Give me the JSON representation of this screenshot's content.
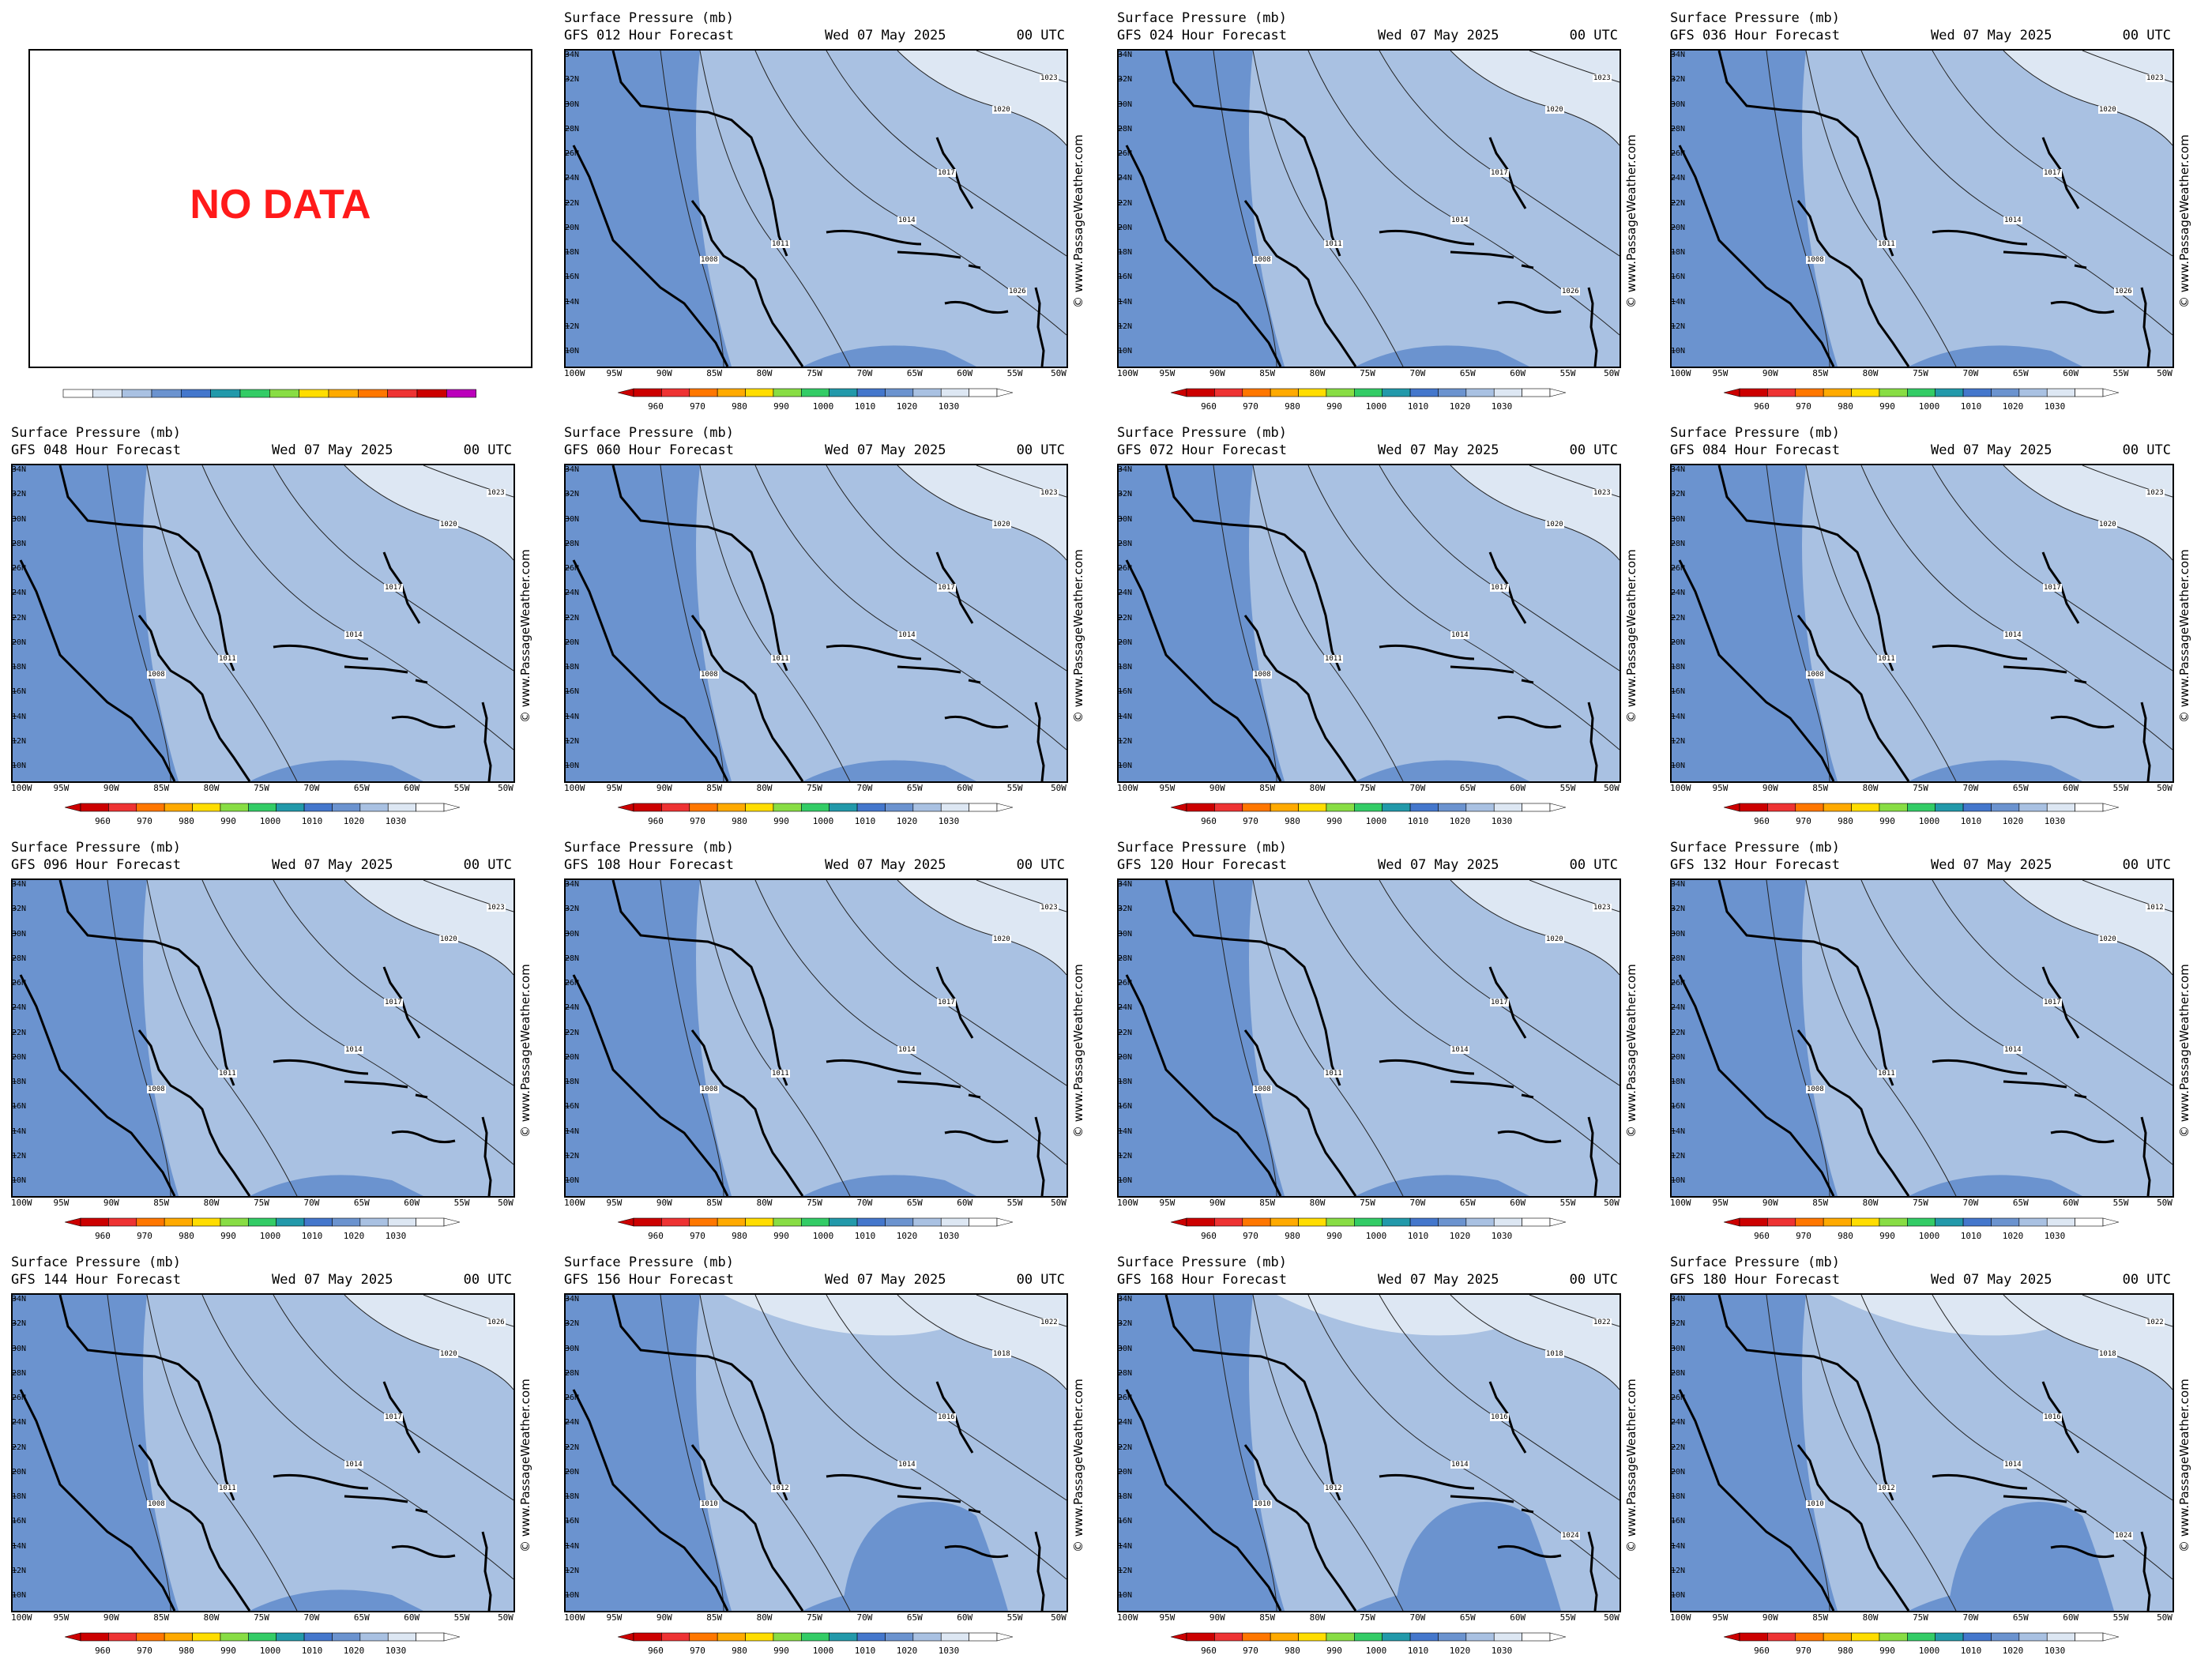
{
  "nodata_panel": {
    "text": "NO DATA"
  },
  "common": {
    "title": "Surface Pressure (mb)",
    "date": "Wed 07 May 2025",
    "utc": "00 UTC",
    "credit": "© www.PassageWeather.com",
    "lat_labels": [
      "34N",
      "32N",
      "30N",
      "28N",
      "26N",
      "24N",
      "22N",
      "20N",
      "18N",
      "16N",
      "14N",
      "12N",
      "10N"
    ],
    "lon_labels": [
      "100W",
      "95W",
      "90W",
      "85W",
      "80W",
      "75W",
      "70W",
      "65W",
      "60W",
      "55W",
      "50W"
    ],
    "colorbar_ticks": [
      "960",
      "970",
      "980",
      "990",
      "1000",
      "1010",
      "1020",
      "1030"
    ],
    "colorbar_colors": [
      "#cc0000",
      "#ee3333",
      "#ff7700",
      "#ffaa00",
      "#ffdd00",
      "#88dd44",
      "#33cc66",
      "#2299aa",
      "#4477cc",
      "#6b93cf",
      "#a9c1e2",
      "#dde7f3",
      "#ffffff"
    ],
    "nodata_colorbar_colors": [
      "#ffffff",
      "#dde7f3",
      "#a9c1e2",
      "#6b93cf",
      "#4477cc",
      "#2299aa",
      "#33cc66",
      "#88dd44",
      "#ffdd00",
      "#ffaa00",
      "#ff7700",
      "#ee3333",
      "#cc0000",
      "#bb00bb"
    ],
    "land_color": "#000000",
    "low_fill": "#6b93cf",
    "mid_fill": "#a9c1e2",
    "high_fill": "#dde7f3"
  },
  "panels": [
    {
      "model": "GFS 012 Hour Forecast",
      "isobars": [
        "1017",
        "1014",
        "1011",
        "1008",
        "1020",
        "1023",
        "1026"
      ]
    },
    {
      "model": "GFS 024 Hour Forecast",
      "isobars": [
        "1017",
        "1014",
        "1011",
        "1008",
        "1020",
        "1023",
        "1026"
      ]
    },
    {
      "model": "GFS 036 Hour Forecast",
      "isobars": [
        "1017",
        "1014",
        "1011",
        "1008",
        "1020",
        "1023",
        "1026"
      ]
    },
    {
      "model": "GFS 048 Hour Forecast",
      "isobars": [
        "1017",
        "1014",
        "1011",
        "1008",
        "1020",
        "1023"
      ]
    },
    {
      "model": "GFS 060 Hour Forecast",
      "isobars": [
        "1017",
        "1014",
        "1011",
        "1008",
        "1020",
        "1023"
      ]
    },
    {
      "model": "GFS 072 Hour Forecast",
      "isobars": [
        "1017",
        "1014",
        "1011",
        "1008",
        "1020",
        "1023"
      ]
    },
    {
      "model": "GFS 084 Hour Forecast",
      "isobars": [
        "1017",
        "1014",
        "1011",
        "1008",
        "1020",
        "1023"
      ]
    },
    {
      "model": "GFS 096 Hour Forecast",
      "isobars": [
        "1017",
        "1014",
        "1011",
        "1008",
        "1020",
        "1023"
      ]
    },
    {
      "model": "GFS 108 Hour Forecast",
      "isobars": [
        "1017",
        "1014",
        "1011",
        "1008",
        "1020",
        "1023"
      ]
    },
    {
      "model": "GFS 120 Hour Forecast",
      "isobars": [
        "1017",
        "1014",
        "1011",
        "1008",
        "1020",
        "1023"
      ]
    },
    {
      "model": "GFS 132 Hour Forecast",
      "isobars": [
        "1017",
        "1014",
        "1011",
        "1008",
        "1020",
        "1012"
      ]
    },
    {
      "model": "GFS 144 Hour Forecast",
      "isobars": [
        "1017",
        "1014",
        "1011",
        "1008",
        "1020",
        "1026"
      ]
    },
    {
      "model": "GFS 156 Hour Forecast",
      "isobars": [
        "1016",
        "1014",
        "1012",
        "1010",
        "1018",
        "1022"
      ]
    },
    {
      "model": "GFS 168 Hour Forecast",
      "isobars": [
        "1016",
        "1014",
        "1012",
        "1010",
        "1018",
        "1022",
        "1024"
      ]
    },
    {
      "model": "GFS 180 Hour Forecast",
      "isobars": [
        "1016",
        "1014",
        "1012",
        "1010",
        "1018",
        "1022",
        "1024"
      ]
    }
  ]
}
